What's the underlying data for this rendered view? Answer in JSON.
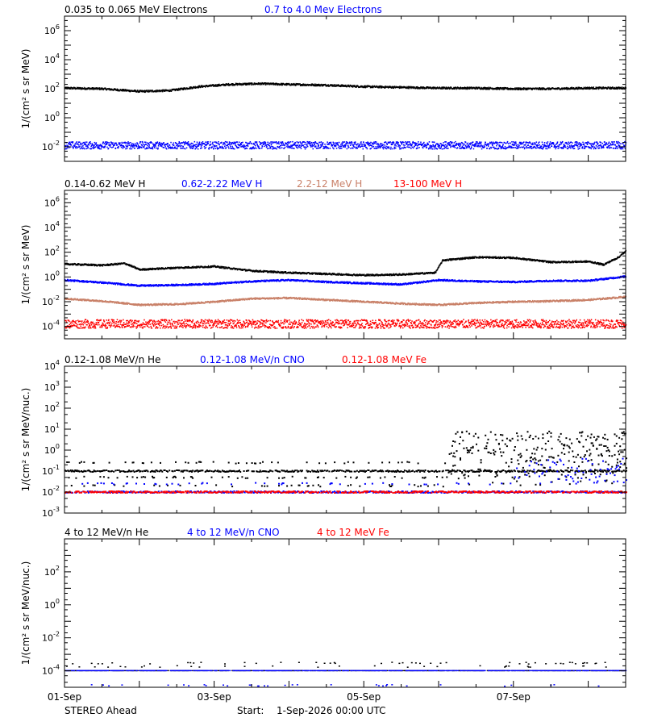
{
  "colors": {
    "black": "#000000",
    "blue": "#0000ff",
    "tan": "#c98068",
    "red": "#ff0000"
  },
  "footer": {
    "spacecraft": "STEREO Ahead",
    "start_label": "Start:",
    "start_value": "1-Sep-2026 00:00 UTC"
  },
  "x_axis": {
    "range_days": [
      0,
      7.5
    ],
    "ticks": [
      {
        "day": 0,
        "label": "01-Sep"
      },
      {
        "day": 2,
        "label": "03-Sep"
      },
      {
        "day": 4,
        "label": "05-Sep"
      },
      {
        "day": 6,
        "label": "07-Sep"
      }
    ]
  },
  "chart_data": [
    {
      "type": "scatter",
      "ylabel": "1/(cm² s sr MeV)",
      "yscale": "log",
      "ylim_exp": [
        -3,
        7
      ],
      "yticks": [
        {
          "base": "10",
          "exp": "6",
          "value_exp": 6
        },
        {
          "base": "10",
          "exp": "4",
          "value_exp": 4
        },
        {
          "base": "10",
          "exp": "2",
          "value_exp": 2
        },
        {
          "base": "10",
          "exp": "0",
          "value_exp": 0
        },
        {
          "base": "10",
          "exp": "-2",
          "value_exp": -2
        }
      ],
      "series": [
        {
          "name": "0.035 to 0.065 MeV Electrons",
          "color": "#000000",
          "style": "line",
          "x": [
            0,
            0.5,
            1.0,
            1.4,
            1.8,
            2.2,
            2.6,
            3.0,
            3.5,
            4.0,
            4.5,
            5.0,
            5.5,
            6.0,
            6.5,
            7.0,
            7.5
          ],
          "log_y": [
            2.05,
            2.0,
            1.82,
            1.88,
            2.15,
            2.3,
            2.35,
            2.3,
            2.25,
            2.15,
            2.1,
            2.05,
            2.05,
            2.0,
            2.0,
            2.05,
            2.05
          ]
        },
        {
          "name": "0.7 to 4.0 Mev Electrons",
          "color": "#0000ff",
          "style": "scatter",
          "x": [
            0,
            7.5
          ],
          "log_y": [
            -1.9,
            -1.9
          ],
          "spread": 0.25
        }
      ]
    },
    {
      "type": "scatter",
      "ylabel": "1/(cm² s sr MeV)",
      "yscale": "log",
      "ylim_exp": [
        -5,
        7
      ],
      "yticks": [
        {
          "base": "10",
          "exp": "6",
          "value_exp": 6
        },
        {
          "base": "10",
          "exp": "4",
          "value_exp": 4
        },
        {
          "base": "10",
          "exp": "2",
          "value_exp": 2
        },
        {
          "base": "10",
          "exp": "0",
          "value_exp": 0
        },
        {
          "base": "10",
          "exp": "-2",
          "value_exp": -2
        },
        {
          "base": "10",
          "exp": "-4",
          "value_exp": -4
        }
      ],
      "series": [
        {
          "name": "0.14-0.62 MeV H",
          "color": "#000000",
          "style": "line",
          "x": [
            0,
            0.5,
            0.8,
            1.0,
            1.5,
            2.0,
            2.5,
            3.0,
            3.5,
            4.0,
            4.5,
            4.95,
            5.05,
            5.5,
            6.0,
            6.5,
            7.0,
            7.2,
            7.4,
            7.5
          ],
          "log_y": [
            1.05,
            0.95,
            1.1,
            0.6,
            0.75,
            0.85,
            0.5,
            0.35,
            0.25,
            0.15,
            0.2,
            0.35,
            1.35,
            1.6,
            1.55,
            1.2,
            1.25,
            1.0,
            1.6,
            2.1
          ]
        },
        {
          "name": "0.62-2.22 MeV H",
          "color": "#0000ff",
          "style": "line",
          "x": [
            0,
            0.5,
            1.0,
            1.5,
            2.0,
            2.5,
            3.0,
            3.5,
            4.0,
            4.5,
            5.0,
            5.5,
            6.0,
            6.5,
            7.0,
            7.5
          ],
          "log_y": [
            -0.25,
            -0.45,
            -0.7,
            -0.65,
            -0.55,
            -0.35,
            -0.25,
            -0.4,
            -0.5,
            -0.6,
            -0.25,
            -0.35,
            -0.4,
            -0.3,
            -0.3,
            0.05
          ]
        },
        {
          "name": "2.2-12 MeV H",
          "color": "#c98068",
          "style": "line",
          "x": [
            0,
            0.5,
            1.0,
            1.5,
            2.0,
            2.5,
            3.0,
            3.5,
            4.0,
            4.5,
            5.0,
            5.5,
            6.0,
            6.5,
            7.0,
            7.5
          ],
          "log_y": [
            -1.75,
            -1.95,
            -2.25,
            -2.2,
            -2.0,
            -1.75,
            -1.7,
            -1.85,
            -2.0,
            -2.15,
            -2.25,
            -2.1,
            -2.0,
            -1.95,
            -1.85,
            -1.6
          ]
        },
        {
          "name": "13-100 MeV H",
          "color": "#ff0000",
          "style": "scatter",
          "x": [
            0,
            7.5
          ],
          "log_y": [
            -3.8,
            -3.8
          ],
          "spread": 0.35
        }
      ]
    },
    {
      "type": "scatter",
      "ylabel": "1/(cm² s sr MeV/nuc.)",
      "yscale": "log",
      "ylim_exp": [
        -3,
        4
      ],
      "yticks": [
        {
          "base": "10",
          "exp": "4",
          "value_exp": 4
        },
        {
          "base": "10",
          "exp": "3",
          "value_exp": 3
        },
        {
          "base": "10",
          "exp": "2",
          "value_exp": 2
        },
        {
          "base": "10",
          "exp": "1",
          "value_exp": 1
        },
        {
          "base": "10",
          "exp": "0",
          "value_exp": 0
        },
        {
          "base": "10",
          "exp": "-1",
          "value_exp": -1
        },
        {
          "base": "10",
          "exp": "-2",
          "value_exp": -2
        },
        {
          "base": "10",
          "exp": "-3",
          "value_exp": -3
        }
      ],
      "series": [
        {
          "name": "0.12-1.08 MeV/n He",
          "color": "#000000",
          "style": "sparse",
          "levels": [
            -1.0,
            -1.3,
            -0.6,
            -1.7
          ],
          "active_after": 5.1,
          "rise_to": 0.3
        },
        {
          "name": "0.12-1.08 MeV/n CNO",
          "color": "#0000ff",
          "style": "sparse",
          "levels": [
            -2.0,
            -1.6
          ],
          "active_after": 6.0,
          "rise_to": -1.0
        },
        {
          "name": "0.12-1.08 MeV Fe",
          "color": "#ff0000",
          "style": "sparse",
          "levels": [
            -2.0
          ],
          "active_after": 99,
          "rise_to": -2.0
        }
      ]
    },
    {
      "type": "scatter",
      "ylabel": "1/(cm² s sr MeV/nuc.)",
      "yscale": "log",
      "ylim_exp": [
        -5,
        4
      ],
      "yticks": [
        {
          "base": "10",
          "exp": "2",
          "value_exp": 2
        },
        {
          "base": "10",
          "exp": "0",
          "value_exp": 0
        },
        {
          "base": "10",
          "exp": "-2",
          "value_exp": -2
        },
        {
          "base": "10",
          "exp": "-4",
          "value_exp": -4
        }
      ],
      "series": [
        {
          "name": "4 to 12 MeV/n He",
          "color": "#000000",
          "style": "floor",
          "levels": [
            -4.0,
            -3.75,
            -3.55
          ]
        },
        {
          "name": "4 to 12 MeV/n CNO",
          "color": "#0000ff",
          "style": "floor",
          "levels": [
            -4.0,
            -4.9
          ]
        },
        {
          "name": "4 to 12 MeV Fe",
          "color": "#ff0000",
          "style": "floor",
          "levels": []
        }
      ]
    }
  ]
}
